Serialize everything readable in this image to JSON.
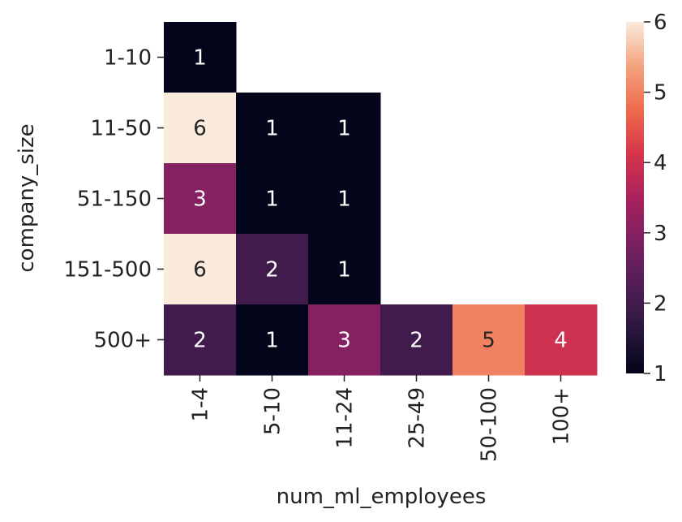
{
  "chart_data": {
    "type": "heatmap",
    "xlabel": "num_ml_employees",
    "ylabel": "company_size",
    "x_categories": [
      "1-4",
      "5-10",
      "11-24",
      "25-49",
      "50-100",
      "100+"
    ],
    "y_categories": [
      "1-10",
      "11-50",
      "51-150",
      "151-500",
      "500+"
    ],
    "values": [
      [
        1,
        null,
        null,
        null,
        null,
        null
      ],
      [
        6,
        1,
        1,
        null,
        null,
        null
      ],
      [
        3,
        1,
        1,
        null,
        null,
        null
      ],
      [
        6,
        2,
        1,
        null,
        null,
        null
      ],
      [
        2,
        1,
        3,
        2,
        5,
        4
      ]
    ],
    "colorbar": {
      "min": 1,
      "max": 6,
      "ticks": [
        "1",
        "2",
        "3",
        "4",
        "5",
        "6"
      ],
      "colormap": "rocket"
    }
  }
}
